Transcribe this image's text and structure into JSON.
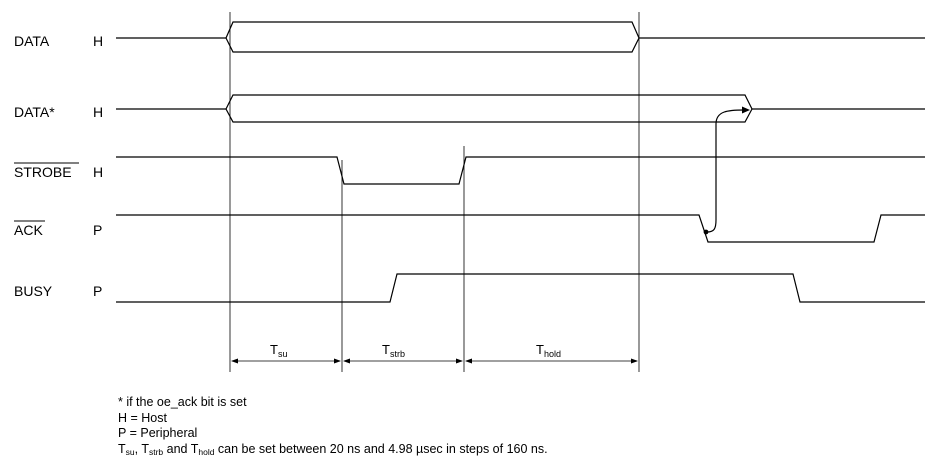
{
  "signals": [
    {
      "id": "data",
      "name": "DATA",
      "dir": "H",
      "overline": false
    },
    {
      "id": "data_star",
      "name": "DATA*",
      "dir": "H",
      "overline": false
    },
    {
      "id": "strobe",
      "name": "STROBE",
      "dir": "H",
      "overline": true
    },
    {
      "id": "ack",
      "name": "ACK",
      "dir": "P",
      "overline": true
    },
    {
      "id": "busy",
      "name": "BUSY",
      "dir": "P",
      "overline": false
    }
  ],
  "timing": [
    {
      "id": "tsu",
      "main": "T",
      "sub": "su"
    },
    {
      "id": "tstrb",
      "main": "T",
      "sub": "strb"
    },
    {
      "id": "thold",
      "main": "T",
      "sub": "hold"
    }
  ],
  "notes": {
    "star": "* if the oe_ack bit is set",
    "host": "H = Host",
    "peripheral": "P = Peripheral",
    "timing_t": "T",
    "timing_su": "su",
    "timing_sep1": ", T",
    "timing_strb": "strb",
    "timing_sep2": " and T",
    "timing_hold": "hold",
    "timing_text": " can be set between 20 ns and 4.98 µsec in steps of 160 ns."
  }
}
